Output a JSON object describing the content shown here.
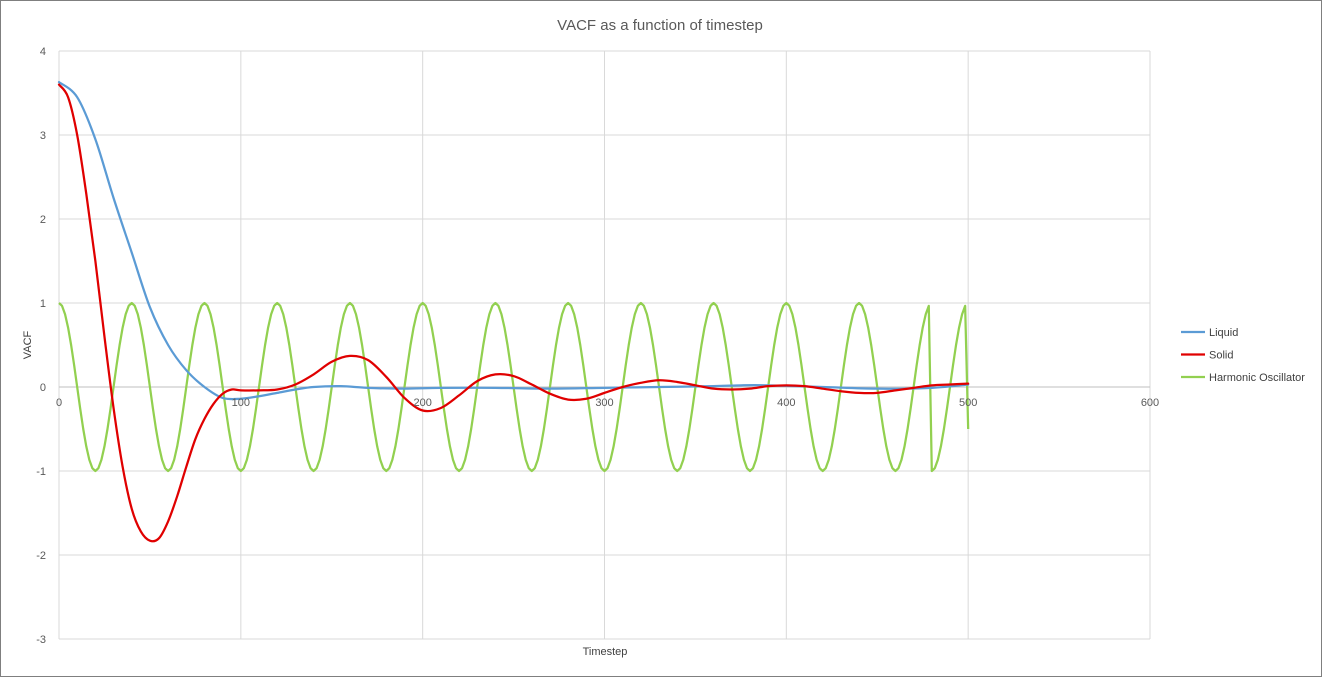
{
  "chart_data": {
    "type": "line",
    "title": "VACF as a function of timestep",
    "xlabel": "Timestep",
    "ylabel": "VACF",
    "xlim": [
      0,
      600
    ],
    "ylim": [
      -3,
      4
    ],
    "xticks": [
      0,
      100,
      200,
      300,
      400,
      500,
      600
    ],
    "yticks": [
      -3,
      -2,
      -1,
      0,
      1,
      2,
      3,
      4
    ],
    "grid": true,
    "legend_position": "right",
    "series": [
      {
        "name": "Liquid",
        "color": "#5b9bd5",
        "x": [
          0,
          10,
          20,
          30,
          40,
          50,
          60,
          70,
          80,
          90,
          100,
          110,
          120,
          130,
          140,
          155,
          170,
          190,
          210,
          240,
          270,
          300,
          330,
          360,
          375,
          390,
          420,
          450,
          480,
          500
        ],
        "y": [
          3.63,
          3.45,
          2.95,
          2.25,
          1.6,
          0.95,
          0.5,
          0.2,
          0.0,
          -0.13,
          -0.14,
          -0.11,
          -0.07,
          -0.03,
          0.0,
          0.01,
          -0.01,
          -0.02,
          -0.01,
          -0.01,
          -0.02,
          -0.01,
          0.0,
          0.01,
          0.02,
          0.02,
          0.0,
          -0.02,
          -0.01,
          0.03
        ]
      },
      {
        "name": "Solid",
        "color": "#e00000",
        "x": [
          0,
          5,
          10,
          15,
          20,
          25,
          30,
          35,
          40,
          45,
          50,
          55,
          60,
          65,
          70,
          75,
          80,
          85,
          90,
          95,
          100,
          110,
          120,
          130,
          140,
          150,
          160,
          170,
          180,
          190,
          200,
          210,
          220,
          230,
          240,
          250,
          260,
          270,
          280,
          290,
          300,
          310,
          320,
          330,
          340,
          350,
          360,
          370,
          380,
          390,
          400,
          410,
          420,
          430,
          440,
          450,
          460,
          470,
          480,
          490,
          500
        ],
        "y": [
          3.6,
          3.45,
          3.0,
          2.3,
          1.5,
          0.6,
          -0.25,
          -0.95,
          -1.45,
          -1.72,
          -1.83,
          -1.8,
          -1.6,
          -1.3,
          -0.95,
          -0.62,
          -0.38,
          -0.2,
          -0.08,
          -0.03,
          -0.04,
          -0.04,
          -0.03,
          0.03,
          0.15,
          0.3,
          0.37,
          0.32,
          0.12,
          -0.13,
          -0.28,
          -0.25,
          -0.1,
          0.07,
          0.15,
          0.13,
          0.03,
          -0.08,
          -0.15,
          -0.14,
          -0.07,
          0.0,
          0.05,
          0.08,
          0.06,
          0.02,
          -0.02,
          -0.03,
          -0.02,
          0.01,
          0.02,
          0.01,
          -0.02,
          -0.05,
          -0.07,
          -0.07,
          -0.04,
          -0.01,
          0.02,
          0.03,
          0.04
        ]
      },
      {
        "name": "Harmonic Oscillator",
        "color": "#92d050",
        "x_start": 0,
        "x_end": 500,
        "points": [
          [
            0,
            1
          ],
          [
            20,
            -1
          ],
          [
            40,
            1
          ],
          [
            60,
            -1
          ],
          [
            80,
            1
          ],
          [
            100,
            -1
          ],
          [
            120,
            1
          ],
          [
            140,
            -1
          ],
          [
            160,
            1
          ],
          [
            180,
            -1
          ],
          [
            200,
            1
          ],
          [
            220,
            -1
          ],
          [
            240,
            1
          ],
          [
            260,
            -1
          ],
          [
            280,
            1
          ],
          [
            300,
            -1
          ],
          [
            320,
            1
          ],
          [
            340,
            -1
          ],
          [
            360,
            1
          ],
          [
            380,
            -1
          ],
          [
            400,
            1
          ],
          [
            420,
            -1
          ],
          [
            440,
            1
          ],
          [
            460,
            -1
          ],
          [
            480,
            1
          ],
          [
            500,
            -0.5
          ]
        ]
      }
    ]
  }
}
